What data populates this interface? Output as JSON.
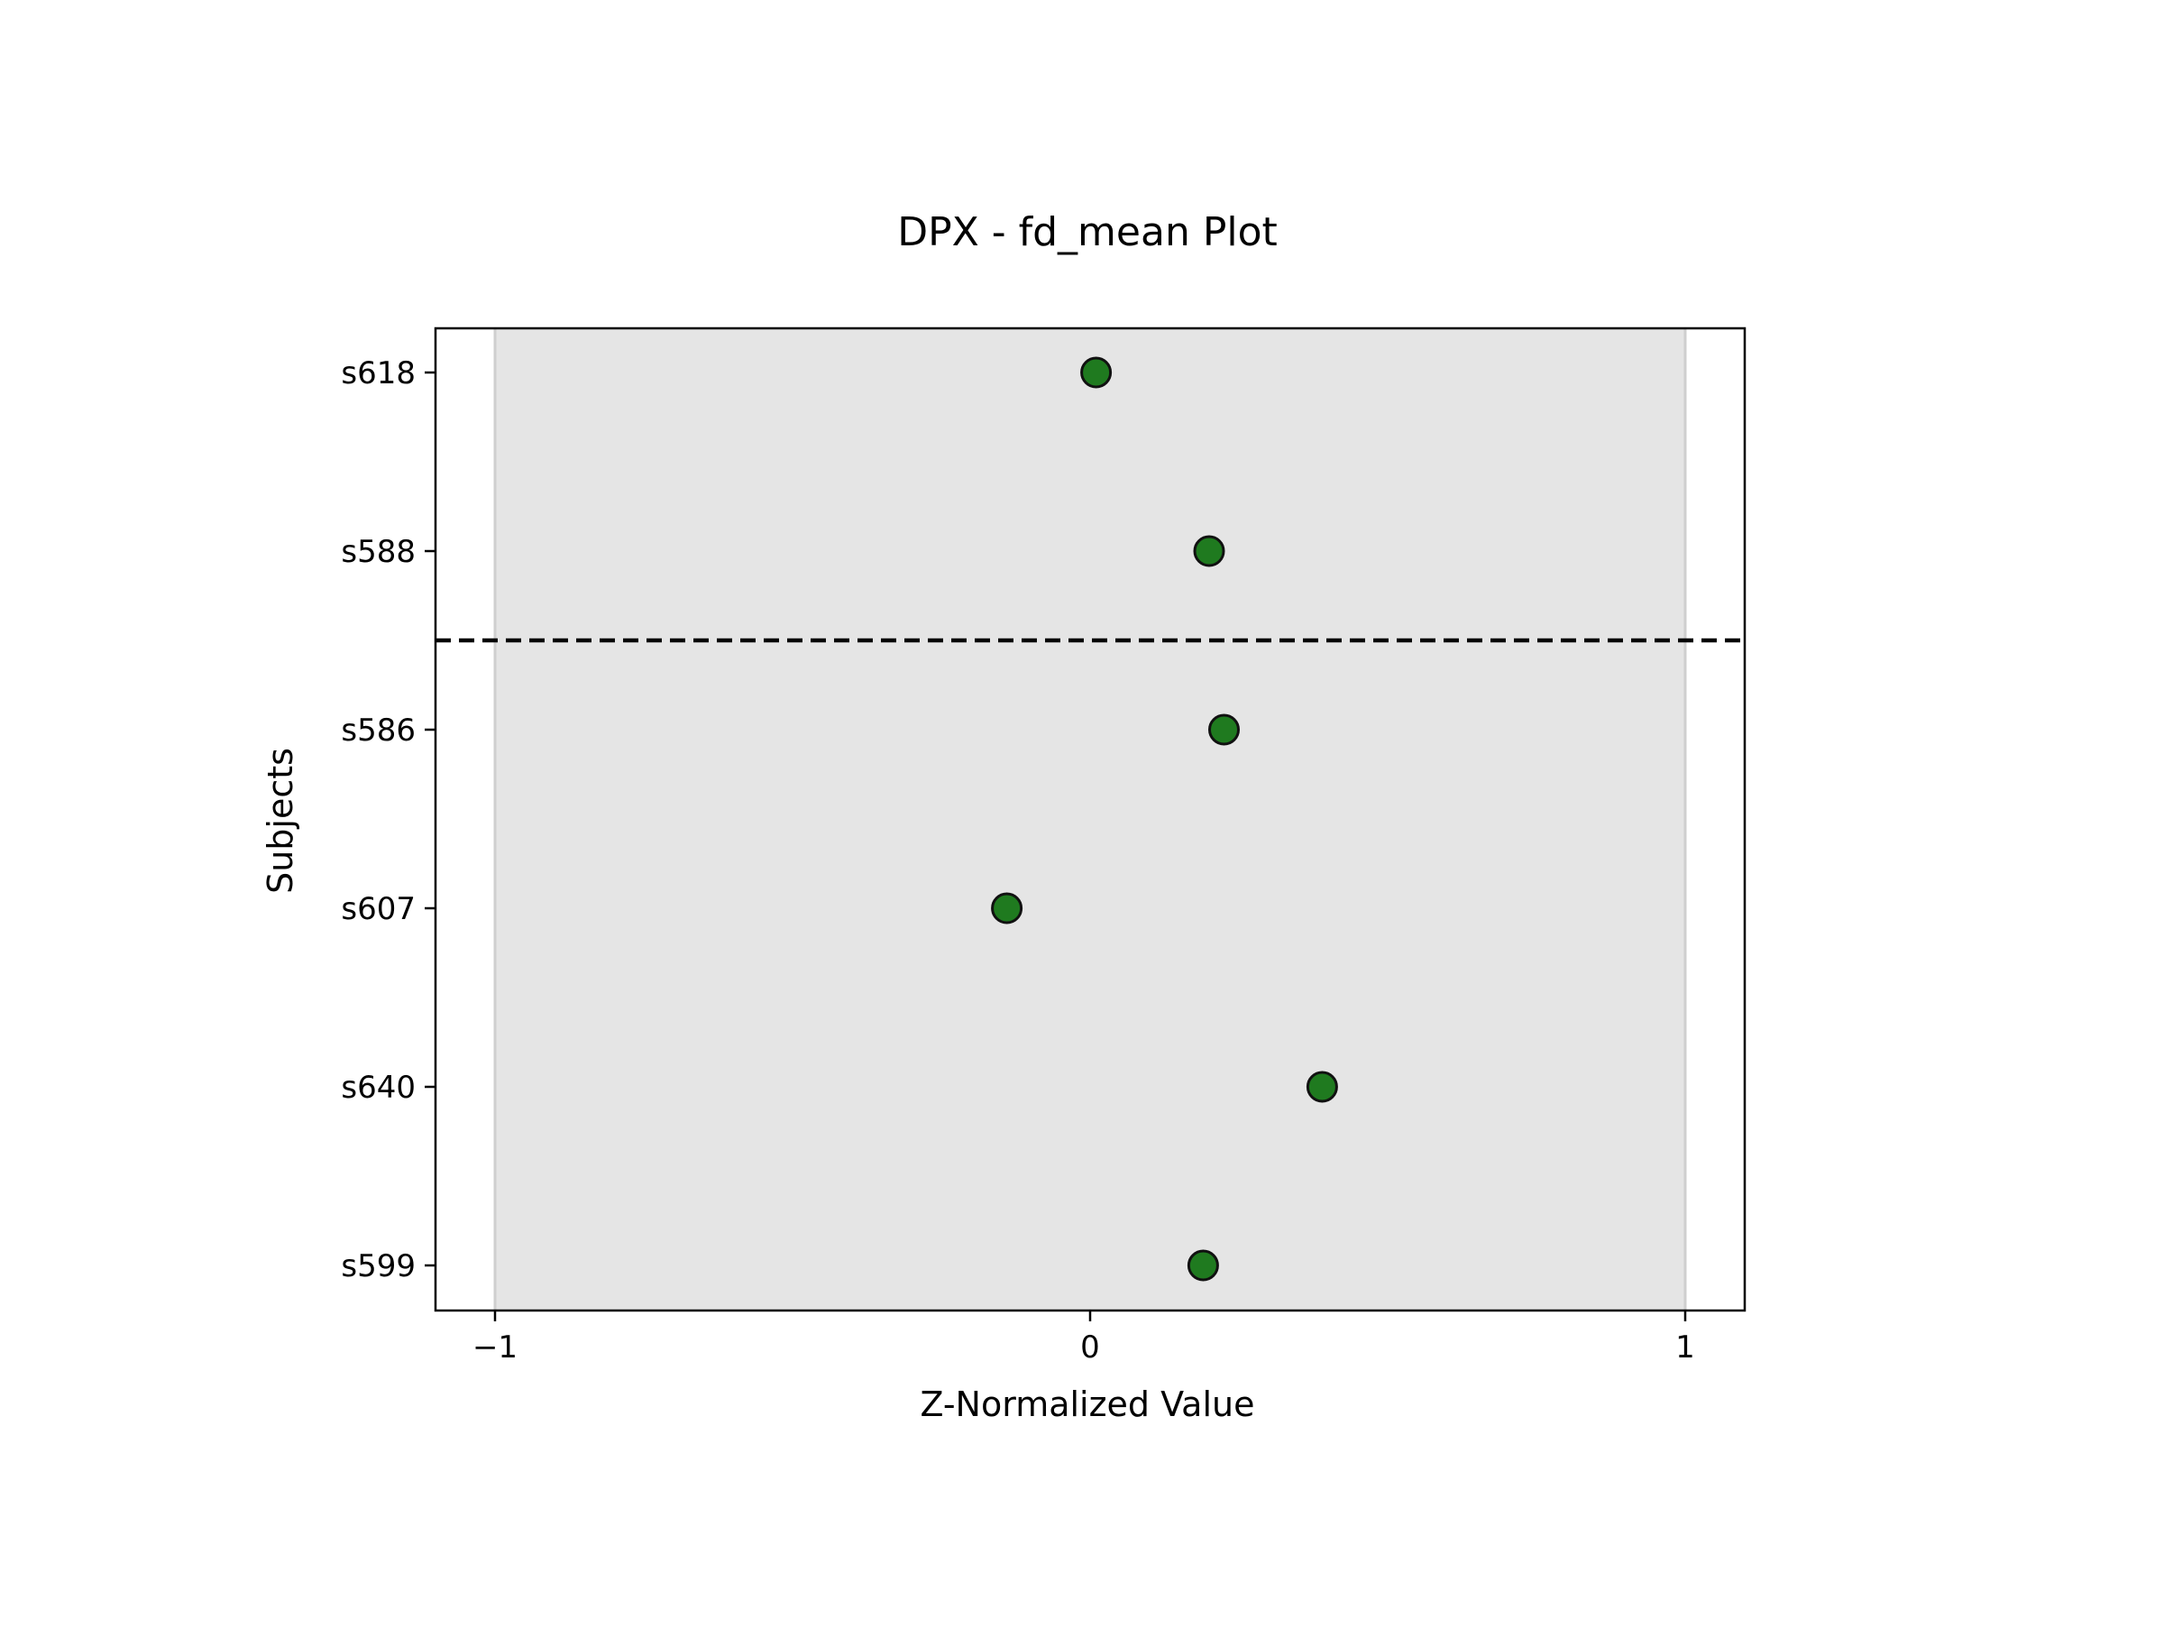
{
  "chart_data": {
    "type": "scatter",
    "title": "DPX - fd_mean Plot",
    "xlabel": "Z-Normalized Value",
    "ylabel": "Subjects",
    "xlim": [
      -1.1,
      1.1
    ],
    "xticks": [
      -1,
      0,
      1
    ],
    "xtick_labels": [
      "−1",
      "0",
      "1"
    ],
    "categories": [
      "s618",
      "s588",
      "s586",
      "s607",
      "s640",
      "s599"
    ],
    "x": [
      0.01,
      0.2,
      0.225,
      -0.14,
      0.39,
      0.19
    ],
    "shaded_range": [
      -1,
      1
    ],
    "separator_between": [
      "s588",
      "s586"
    ],
    "grid": false,
    "legend": "none",
    "colors": {
      "marker_fill": "#1f7a1f",
      "marker_edge": "#111111",
      "band_fill": "#e5e5e5",
      "band_edge": "#cfcfcf",
      "separator": "#000000"
    }
  }
}
